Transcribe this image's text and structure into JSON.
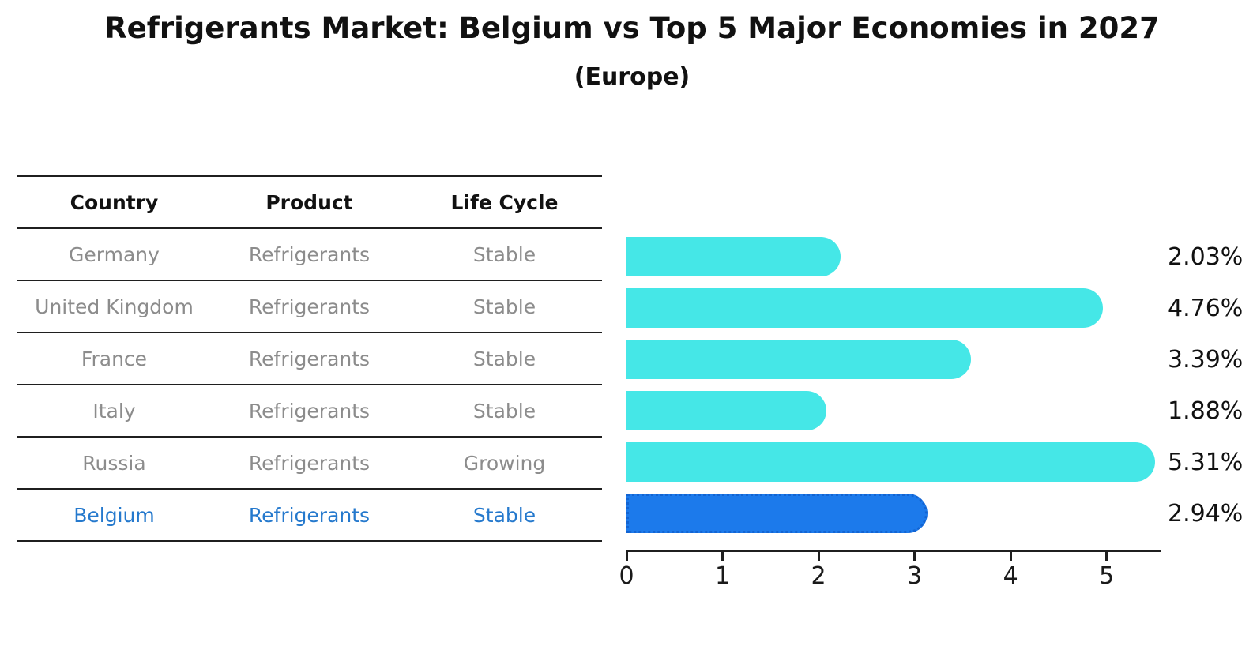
{
  "title": "Refrigerants Market: Belgium vs Top 5 Major Economies in 2027",
  "subtitle": "(Europe)",
  "table": {
    "headers": [
      "Country",
      "Product",
      "Life Cycle"
    ],
    "rows": [
      {
        "country": "Germany",
        "product": "Refrigerants",
        "life_cycle": "Stable",
        "highlighted": false
      },
      {
        "country": "United Kingdom",
        "product": "Refrigerants",
        "life_cycle": "Stable",
        "highlighted": false
      },
      {
        "country": "France",
        "product": "Refrigerants",
        "life_cycle": "Stable",
        "highlighted": false
      },
      {
        "country": "Italy",
        "product": "Refrigerants",
        "life_cycle": "Stable",
        "highlighted": false
      },
      {
        "country": "Russia",
        "product": "Refrigerants",
        "life_cycle": "Growing",
        "highlighted": false
      },
      {
        "country": "Belgium",
        "product": "Refrigerants",
        "life_cycle": "Stable",
        "highlighted": true
      }
    ]
  },
  "chart_data": {
    "type": "bar",
    "orientation": "horizontal",
    "title": "Refrigerants Market: Belgium vs Top 5 Major Economies in 2027",
    "subtitle": "(Europe)",
    "categories": [
      "Germany",
      "United Kingdom",
      "France",
      "Italy",
      "Russia",
      "Belgium"
    ],
    "values": [
      2.03,
      4.76,
      3.39,
      1.88,
      5.31,
      2.94
    ],
    "value_labels": [
      "2.03%",
      "4.76%",
      "3.39%",
      "1.88%",
      "5.31%",
      "2.94%"
    ],
    "highlight_category": "Belgium",
    "xlabel": "",
    "ylabel": "",
    "xlim": [
      0,
      5.57
    ],
    "x_ticks": [
      0,
      1,
      2,
      3,
      4,
      5
    ],
    "grid": false,
    "legend": false,
    "colors": {
      "bar": "#45e7e7",
      "highlight_bar": "#1c7aeb",
      "highlight_bar_border": "#1364d2",
      "highlight_text": "#2579cd",
      "table_text": "#8c8c8c",
      "header_text": "#111111",
      "value_text": "#111111"
    }
  }
}
